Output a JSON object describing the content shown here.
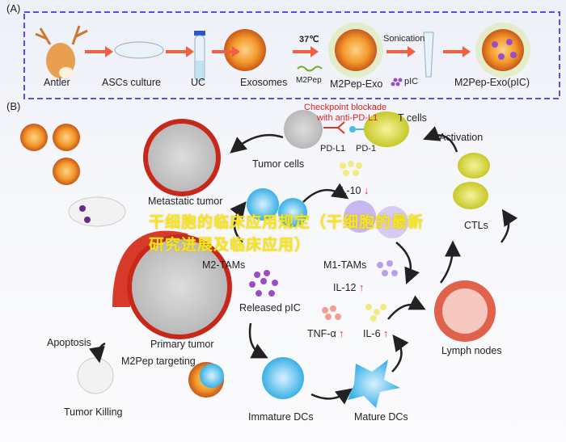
{
  "panel_a": {
    "label": "(A)",
    "steps": [
      "Antler",
      "ASCs culture",
      "UC",
      "Exosomes",
      "M2Pep-Exo",
      "M2Pep-Exo(pIC)"
    ],
    "temperature": "37℃",
    "peptide": "M2Pep",
    "sonication": "Sonication",
    "cargo": "pIC"
  },
  "panel_b": {
    "label": "(B)",
    "checkpoint": "Checkpoint blockade",
    "checkpoint_2": "with anti-PD-L1",
    "t_cells": "T cells",
    "pd_l1": "PD-L1",
    "pd_1": "PD-1",
    "tumor_cells": "Tumor cells",
    "activation": "Activation",
    "metastatic": "Metastatic tumor",
    "il10": "IL-10",
    "m2_tams": "M2-TAMs",
    "m1_tams": "M1-TAMs",
    "ctls": "CTLs",
    "il12": "IL-12",
    "released_pic": "Released pIC",
    "tnf": "TNF-α",
    "il6": "IL-6",
    "primary": "Primary tumor",
    "apoptosis": "Apoptosis",
    "targeting": "M2Pep targeting",
    "lymph": "Lymph nodes",
    "tumor_killing": "Tumor Killing",
    "immature": "Immature DCs",
    "mature": "Mature DCs",
    "up": "↑",
    "down": "↓"
  },
  "watermark": "干细胞的临床应用规定（干细胞的最新研究进展及临床应用）",
  "colors": {
    "frame": "#5a4fe0",
    "arrow_a": "#f06040",
    "label_red": "#e0202a",
    "exosome": "#f08a20",
    "tumor": "#d83a2a",
    "dc": "#4ab8e8",
    "t_cell": "#d8dc40",
    "pic": "#9b4dc8"
  }
}
